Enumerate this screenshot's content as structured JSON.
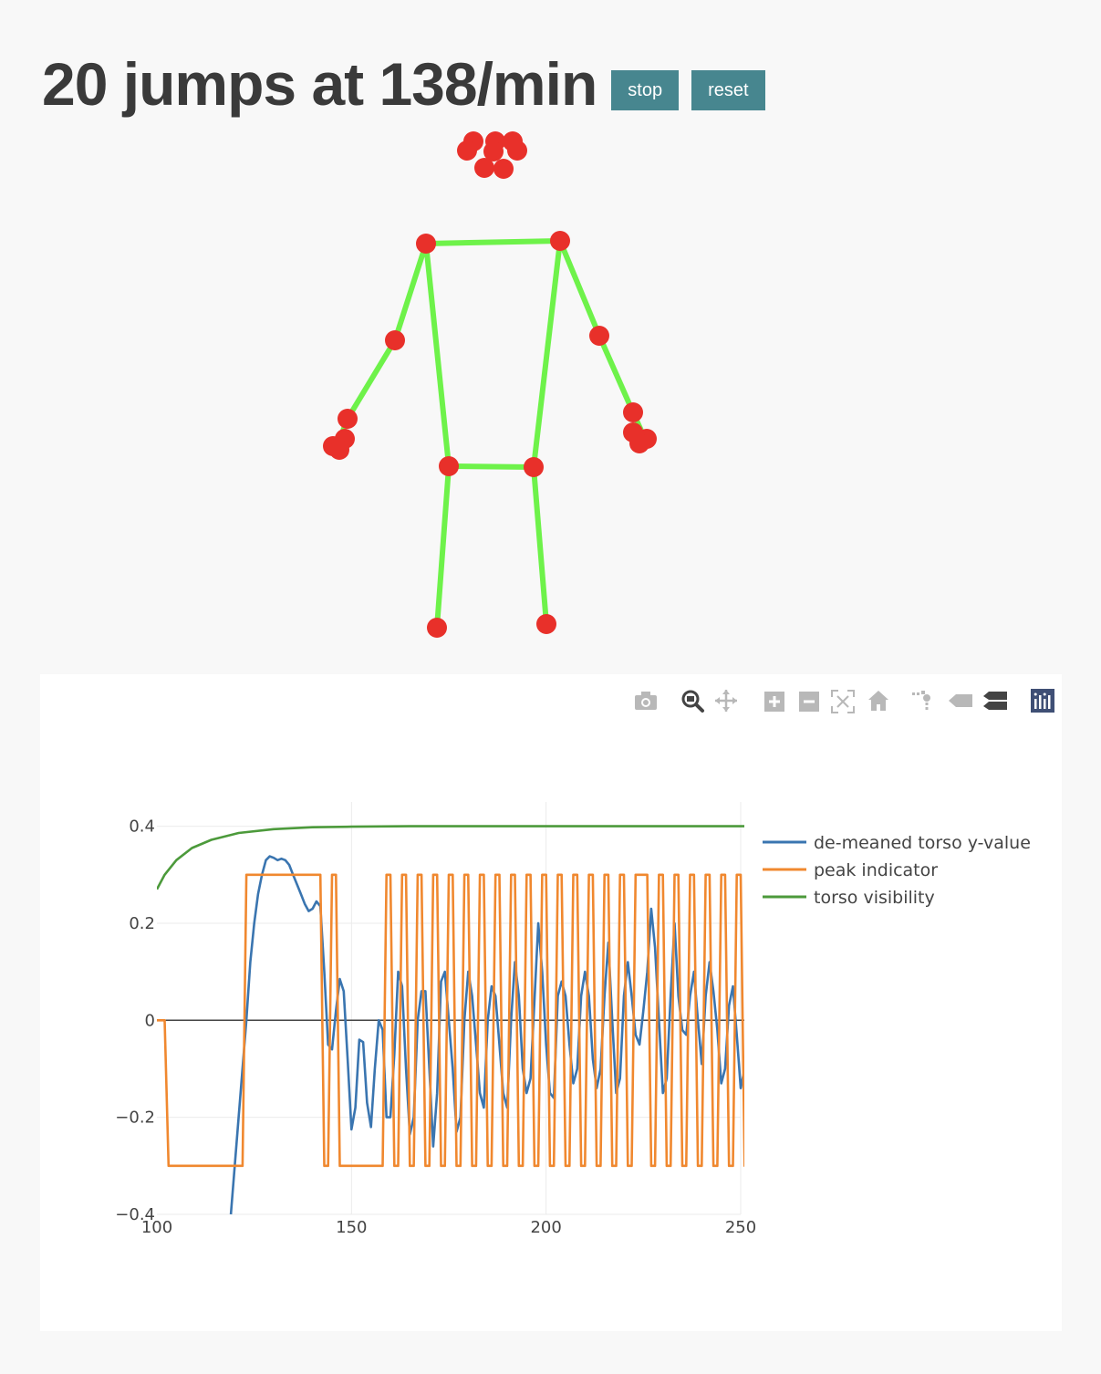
{
  "header": {
    "title": "20 jumps at 138/min",
    "stop_label": "stop",
    "reset_label": "reset"
  },
  "colors": {
    "button_bg": "#47868f",
    "skeleton_line": "#6ef24a",
    "skeleton_joint": "#e8302a",
    "series_torso": "#3a75b0",
    "series_peak": "#f0882f",
    "series_visibility": "#4c9a3b"
  },
  "modebar": {
    "icons": [
      "camera-icon",
      "zoom-icon",
      "pan-icon",
      "zoom-in-icon",
      "zoom-out-icon",
      "autoscale-icon",
      "home-icon",
      "spike-lines-icon",
      "hover-closest-icon",
      "hover-compare-icon",
      "plotly-logo-icon"
    ]
  },
  "chart_data": {
    "type": "line",
    "title": "",
    "xlabel": "",
    "ylabel": "",
    "xlim": [
      100,
      250
    ],
    "ylim": [
      -0.4,
      0.45
    ],
    "x_ticks": [
      "100",
      "150",
      "200",
      "250"
    ],
    "y_ticks": [
      "0.4",
      "0.2",
      "0",
      "−0.2",
      "−0.4"
    ],
    "legend_position": "top-right",
    "series": [
      {
        "name": "de-meaned torso y-value",
        "color": "#3a75b0",
        "points": [
          [
            119,
            -0.4
          ],
          [
            121,
            -0.2
          ],
          [
            123,
            0
          ],
          [
            124,
            0.12
          ],
          [
            125,
            0.2
          ],
          [
            126,
            0.26
          ],
          [
            127,
            0.3
          ],
          [
            128,
            0.33
          ],
          [
            129,
            0.338
          ],
          [
            130,
            0.335
          ],
          [
            131,
            0.33
          ],
          [
            132,
            0.333
          ],
          [
            133,
            0.33
          ],
          [
            134,
            0.32
          ],
          [
            135,
            0.3
          ],
          [
            136,
            0.28
          ],
          [
            137,
            0.26
          ],
          [
            138,
            0.24
          ],
          [
            139,
            0.225
          ],
          [
            140,
            0.23
          ],
          [
            141,
            0.245
          ],
          [
            142,
            0.235
          ],
          [
            143,
            0.1
          ],
          [
            144,
            -0.05
          ],
          [
            145,
            -0.06
          ],
          [
            146,
            0.02
          ],
          [
            147,
            0.085
          ],
          [
            148,
            0.06
          ],
          [
            149,
            -0.08
          ],
          [
            150,
            -0.225
          ],
          [
            151,
            -0.18
          ],
          [
            152,
            -0.04
          ],
          [
            153,
            -0.045
          ],
          [
            154,
            -0.17
          ],
          [
            155,
            -0.22
          ],
          [
            156,
            -0.1
          ],
          [
            157,
            0.0
          ],
          [
            158,
            -0.02
          ],
          [
            159,
            -0.2
          ],
          [
            160,
            -0.2
          ],
          [
            161,
            -0.07
          ],
          [
            162,
            0.1
          ],
          [
            163,
            0.07
          ],
          [
            164,
            -0.1
          ],
          [
            165,
            -0.235
          ],
          [
            166,
            -0.2
          ],
          [
            167,
            0.0
          ],
          [
            168,
            0.06
          ],
          [
            169,
            0.06
          ],
          [
            170,
            -0.1
          ],
          [
            171,
            -0.26
          ],
          [
            172,
            -0.15
          ],
          [
            173,
            0.08
          ],
          [
            174,
            0.1
          ],
          [
            175,
            0.0
          ],
          [
            176,
            -0.1
          ],
          [
            177,
            -0.23
          ],
          [
            178,
            -0.2
          ],
          [
            179,
            0.0
          ],
          [
            180,
            0.1
          ],
          [
            181,
            0.05
          ],
          [
            182,
            -0.05
          ],
          [
            183,
            -0.15
          ],
          [
            184,
            -0.18
          ],
          [
            185,
            0.0
          ],
          [
            186,
            0.07
          ],
          [
            187,
            0.05
          ],
          [
            188,
            -0.05
          ],
          [
            189,
            -0.15
          ],
          [
            190,
            -0.18
          ],
          [
            191,
            0.0
          ],
          [
            192,
            0.12
          ],
          [
            193,
            0.05
          ],
          [
            194,
            -0.1
          ],
          [
            195,
            -0.15
          ],
          [
            196,
            -0.12
          ],
          [
            197,
            0.04
          ],
          [
            198,
            0.2
          ],
          [
            199,
            0.1
          ],
          [
            200,
            -0.05
          ],
          [
            201,
            -0.15
          ],
          [
            202,
            -0.16
          ],
          [
            203,
            0.05
          ],
          [
            204,
            0.08
          ],
          [
            205,
            0.05
          ],
          [
            206,
            -0.05
          ],
          [
            207,
            -0.13
          ],
          [
            208,
            -0.1
          ],
          [
            209,
            0.05
          ],
          [
            210,
            0.1
          ],
          [
            211,
            0.05
          ],
          [
            212,
            -0.08
          ],
          [
            213,
            -0.14
          ],
          [
            214,
            -0.1
          ],
          [
            215,
            0.05
          ],
          [
            216,
            0.16
          ],
          [
            217,
            0.0
          ],
          [
            218,
            -0.15
          ],
          [
            219,
            -0.12
          ],
          [
            220,
            0.05
          ],
          [
            221,
            0.12
          ],
          [
            222,
            0.05
          ],
          [
            223,
            -0.03
          ],
          [
            224,
            -0.05
          ],
          [
            225,
            0.02
          ],
          [
            226,
            0.1
          ],
          [
            227,
            0.23
          ],
          [
            228,
            0.15
          ],
          [
            229,
            0.0
          ],
          [
            230,
            -0.15
          ],
          [
            231,
            -0.12
          ],
          [
            232,
            0.05
          ],
          [
            233,
            0.2
          ],
          [
            234,
            0.05
          ],
          [
            235,
            -0.02
          ],
          [
            236,
            -0.03
          ],
          [
            237,
            0.05
          ],
          [
            238,
            0.1
          ],
          [
            239,
            0.0
          ],
          [
            240,
            -0.09
          ],
          [
            241,
            0.05
          ],
          [
            242,
            0.12
          ],
          [
            243,
            0.06
          ],
          [
            244,
            -0.02
          ],
          [
            245,
            -0.13
          ],
          [
            246,
            -0.1
          ],
          [
            247,
            0.03
          ],
          [
            248,
            0.07
          ],
          [
            249,
            -0.03
          ],
          [
            250,
            -0.14
          ],
          [
            251,
            -0.1
          ],
          [
            252,
            0.03
          ],
          [
            253,
            0.09
          ],
          [
            254,
            0.06
          ],
          [
            255,
            -0.03
          ]
        ]
      },
      {
        "name": "peak indicator",
        "color": "#f0882f",
        "points": [
          [
            100,
            0
          ],
          [
            102,
            0
          ],
          [
            103,
            -0.3
          ],
          [
            122,
            -0.3
          ],
          [
            123,
            0.3
          ],
          [
            142,
            0.3
          ],
          [
            143,
            -0.3
          ],
          [
            144,
            -0.3
          ],
          [
            145,
            0.3
          ],
          [
            146,
            0.3
          ],
          [
            147,
            -0.3
          ],
          [
            158,
            -0.3
          ],
          [
            159,
            0.3
          ],
          [
            160,
            0.3
          ],
          [
            161,
            -0.3
          ],
          [
            162,
            -0.3
          ],
          [
            163,
            0.3
          ],
          [
            164,
            0.3
          ],
          [
            165,
            -0.3
          ],
          [
            166,
            -0.3
          ],
          [
            167,
            0.3
          ],
          [
            168,
            0.3
          ],
          [
            169,
            -0.3
          ],
          [
            170,
            -0.3
          ],
          [
            171,
            0.3
          ],
          [
            172,
            0.3
          ],
          [
            173,
            -0.3
          ],
          [
            174,
            -0.3
          ],
          [
            175,
            0.3
          ],
          [
            176,
            0.3
          ],
          [
            177,
            -0.3
          ],
          [
            178,
            -0.3
          ],
          [
            179,
            0.3
          ],
          [
            180,
            0.3
          ],
          [
            181,
            -0.3
          ],
          [
            182,
            -0.3
          ],
          [
            183,
            0.3
          ],
          [
            184,
            0.3
          ],
          [
            185,
            -0.3
          ],
          [
            186,
            -0.3
          ],
          [
            187,
            0.3
          ],
          [
            188,
            0.3
          ],
          [
            189,
            -0.3
          ],
          [
            190,
            -0.3
          ],
          [
            191,
            0.3
          ],
          [
            192,
            0.3
          ],
          [
            193,
            -0.3
          ],
          [
            194,
            -0.3
          ],
          [
            195,
            0.3
          ],
          [
            196,
            0.3
          ],
          [
            197,
            -0.3
          ],
          [
            198,
            -0.3
          ],
          [
            199,
            0.3
          ],
          [
            200,
            0.3
          ],
          [
            201,
            -0.3
          ],
          [
            202,
            -0.3
          ],
          [
            203,
            0.3
          ],
          [
            204,
            0.3
          ],
          [
            205,
            -0.3
          ],
          [
            206,
            -0.3
          ],
          [
            207,
            0.3
          ],
          [
            208,
            0.3
          ],
          [
            209,
            -0.3
          ],
          [
            210,
            -0.3
          ],
          [
            211,
            0.3
          ],
          [
            212,
            0.3
          ],
          [
            213,
            -0.3
          ],
          [
            214,
            -0.3
          ],
          [
            215,
            0.3
          ],
          [
            216,
            0.3
          ],
          [
            217,
            -0.3
          ],
          [
            218,
            -0.3
          ],
          [
            219,
            0.3
          ],
          [
            220,
            0.3
          ],
          [
            221,
            -0.3
          ],
          [
            222,
            -0.3
          ],
          [
            223,
            0.3
          ],
          [
            226,
            0.3
          ],
          [
            227,
            -0.3
          ],
          [
            228,
            -0.3
          ],
          [
            229,
            0.3
          ],
          [
            230,
            0.3
          ],
          [
            231,
            -0.3
          ],
          [
            232,
            -0.3
          ],
          [
            233,
            0.3
          ],
          [
            234,
            0.3
          ],
          [
            235,
            -0.3
          ],
          [
            236,
            -0.3
          ],
          [
            237,
            0.3
          ],
          [
            238,
            0.3
          ],
          [
            239,
            -0.3
          ],
          [
            240,
            -0.3
          ],
          [
            241,
            0.3
          ],
          [
            242,
            0.3
          ],
          [
            243,
            -0.3
          ],
          [
            244,
            -0.3
          ],
          [
            245,
            0.3
          ],
          [
            246,
            0.3
          ],
          [
            247,
            -0.3
          ],
          [
            248,
            -0.3
          ],
          [
            249,
            0.3
          ],
          [
            250,
            0.3
          ],
          [
            251,
            -0.3
          ],
          [
            252,
            -0.3
          ],
          [
            253,
            0.3
          ],
          [
            254,
            0.3
          ],
          [
            255,
            -0.3
          ]
        ]
      },
      {
        "name": "torso visibility",
        "color": "#4c9a3b",
        "points": [
          [
            100,
            0.27
          ],
          [
            102,
            0.3
          ],
          [
            105,
            0.33
          ],
          [
            109,
            0.355
          ],
          [
            114,
            0.372
          ],
          [
            121,
            0.386
          ],
          [
            130,
            0.394
          ],
          [
            140,
            0.398
          ],
          [
            150,
            0.399
          ],
          [
            165,
            0.4
          ],
          [
            180,
            0.4
          ],
          [
            200,
            0.4
          ],
          [
            220,
            0.4
          ],
          [
            240,
            0.4
          ],
          [
            255,
            0.4
          ]
        ]
      }
    ]
  }
}
